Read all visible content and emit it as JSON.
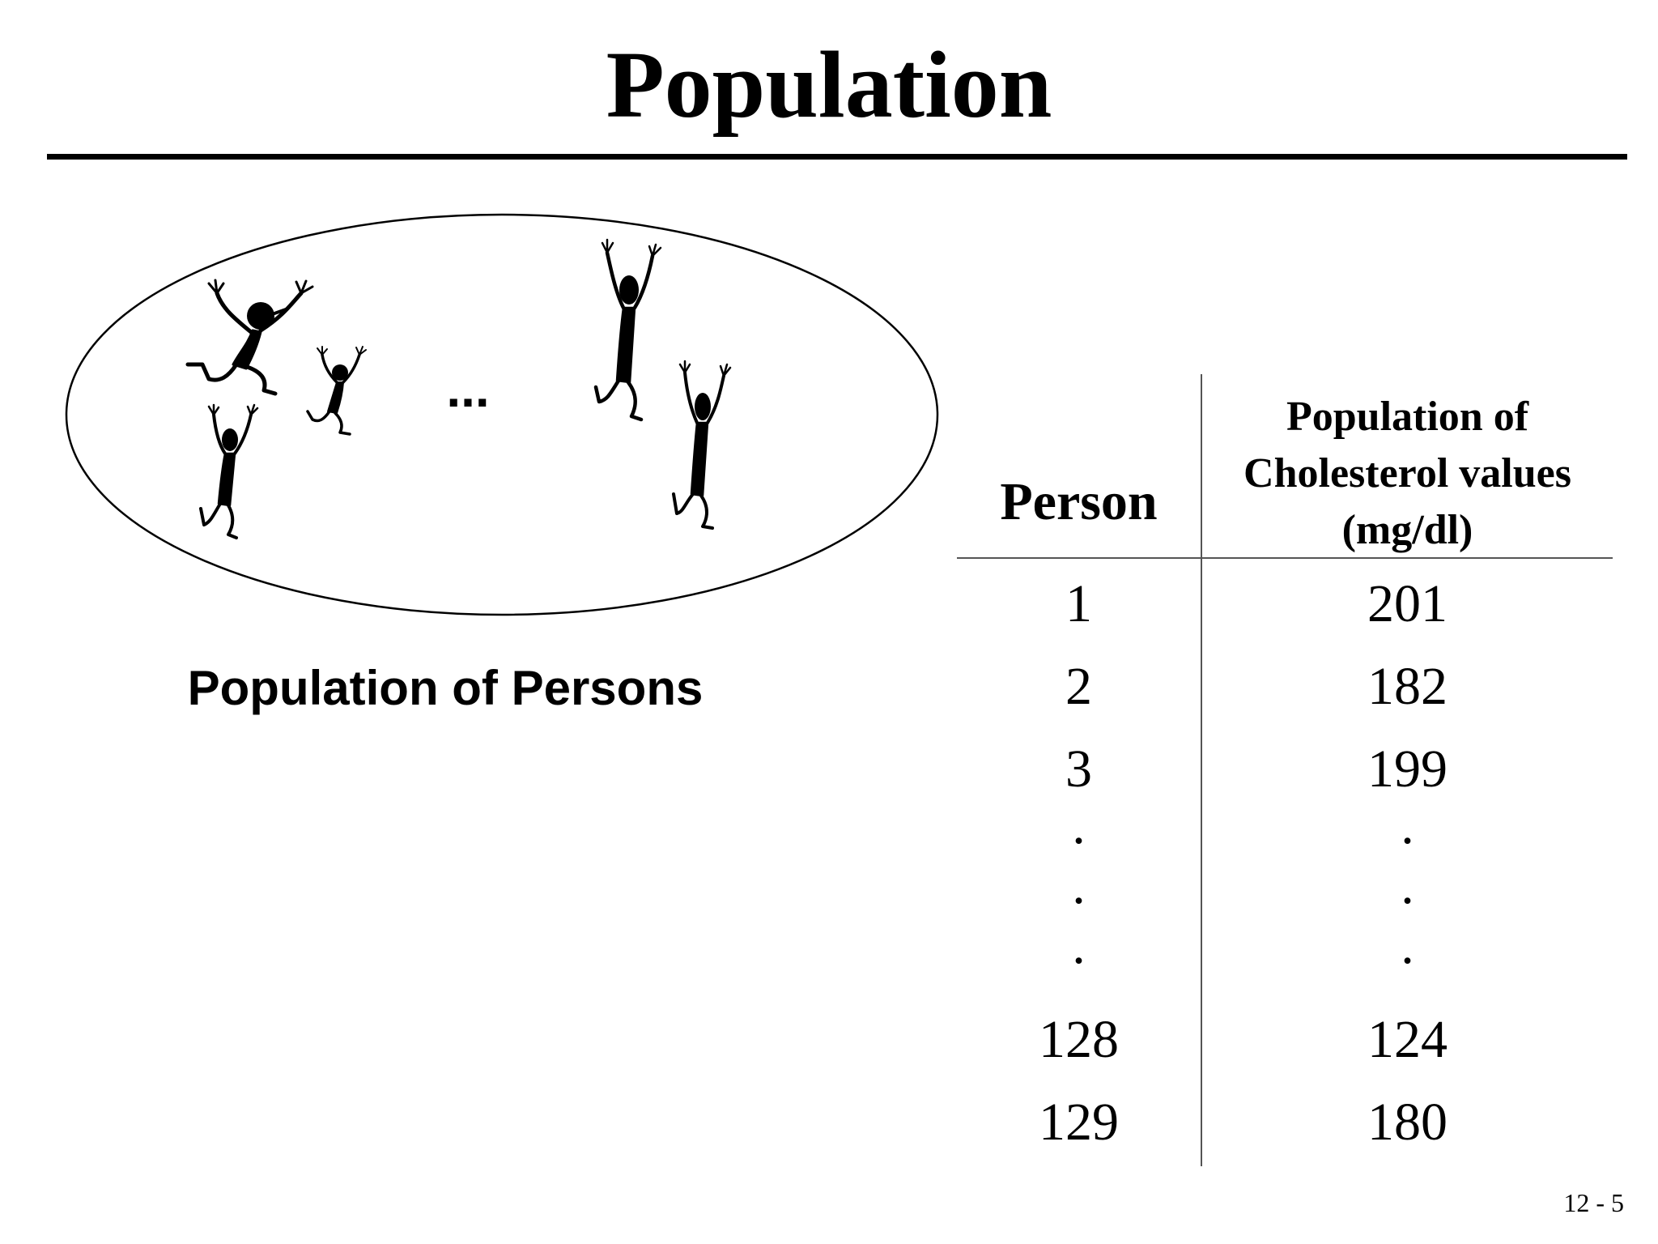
{
  "slide": {
    "title": "Population",
    "page_number": "12 - 5"
  },
  "illustration": {
    "ellipsis": "...",
    "caption": "Population of Persons"
  },
  "table": {
    "headers": {
      "person": "Person",
      "values_line1": "Population of",
      "values_line2": "Cholesterol values",
      "values_line3": "(mg/dl)"
    },
    "rows": [
      {
        "person": "1",
        "value": "201"
      },
      {
        "person": "2",
        "value": "182"
      },
      {
        "person": "3",
        "value": "199"
      },
      {
        "person": ".",
        "value": "."
      },
      {
        "person": ".",
        "value": "."
      },
      {
        "person": ".",
        "value": "."
      },
      {
        "person": "128",
        "value": "124"
      },
      {
        "person": "129",
        "value": "180"
      }
    ]
  }
}
